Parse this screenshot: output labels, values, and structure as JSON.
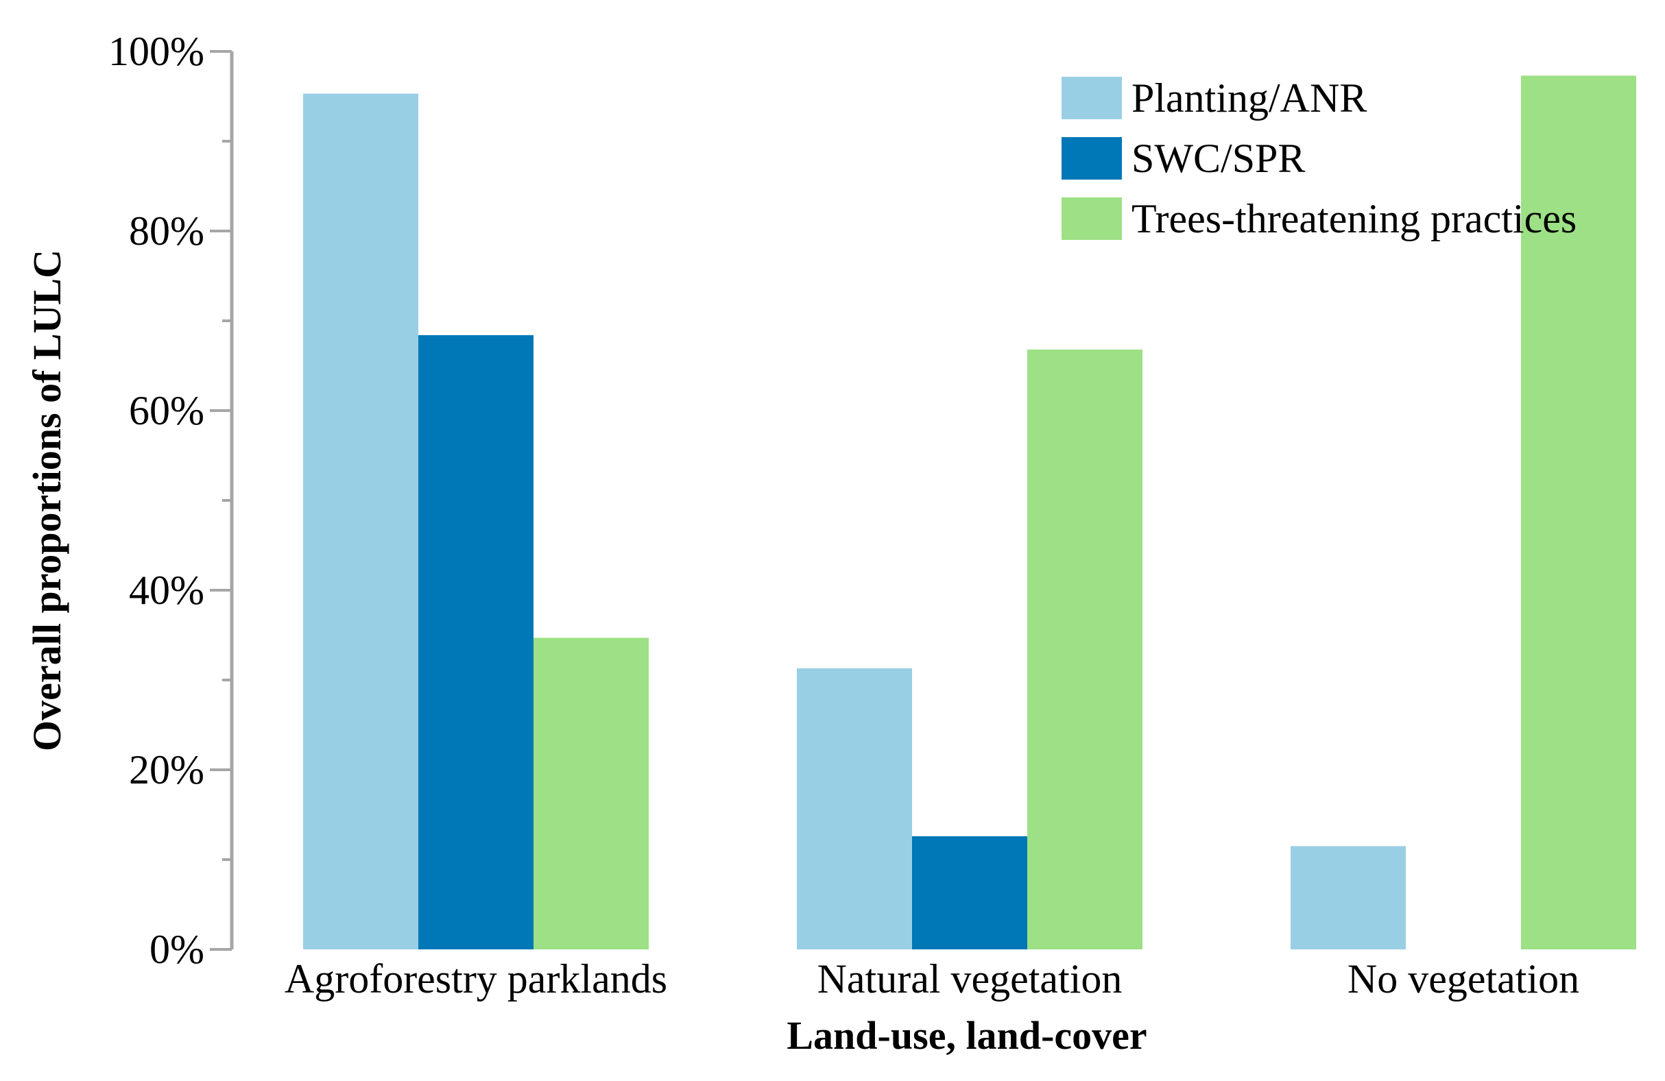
{
  "colors": {
    "planting": "#99cfe4",
    "swc": "#0077b6",
    "trees": "#9de085",
    "axis": "#a6a6a6"
  },
  "chart_data": {
    "type": "bar",
    "title": "",
    "xlabel": "Land-use, land-cover",
    "ylabel": "Overall proportions of LULC",
    "ylim": [
      0,
      100
    ],
    "y_ticks": [
      "0%",
      "20%",
      "40%",
      "60%",
      "80%",
      "100%"
    ],
    "categories": [
      "Agroforestry parklands",
      "Natural vegetation",
      "No vegetation"
    ],
    "series": [
      {
        "name": "Planting/ANR",
        "color_key": "planting",
        "values": [
          95.3,
          31.3,
          11.5
        ]
      },
      {
        "name": "SWC/SPR",
        "color_key": "swc",
        "values": [
          68.4,
          12.6,
          0
        ]
      },
      {
        "name": "Trees-threatening practices",
        "color_key": "trees",
        "values": [
          34.7,
          66.8,
          97.3
        ]
      }
    ],
    "legend_position": "top-right",
    "grid": false
  }
}
